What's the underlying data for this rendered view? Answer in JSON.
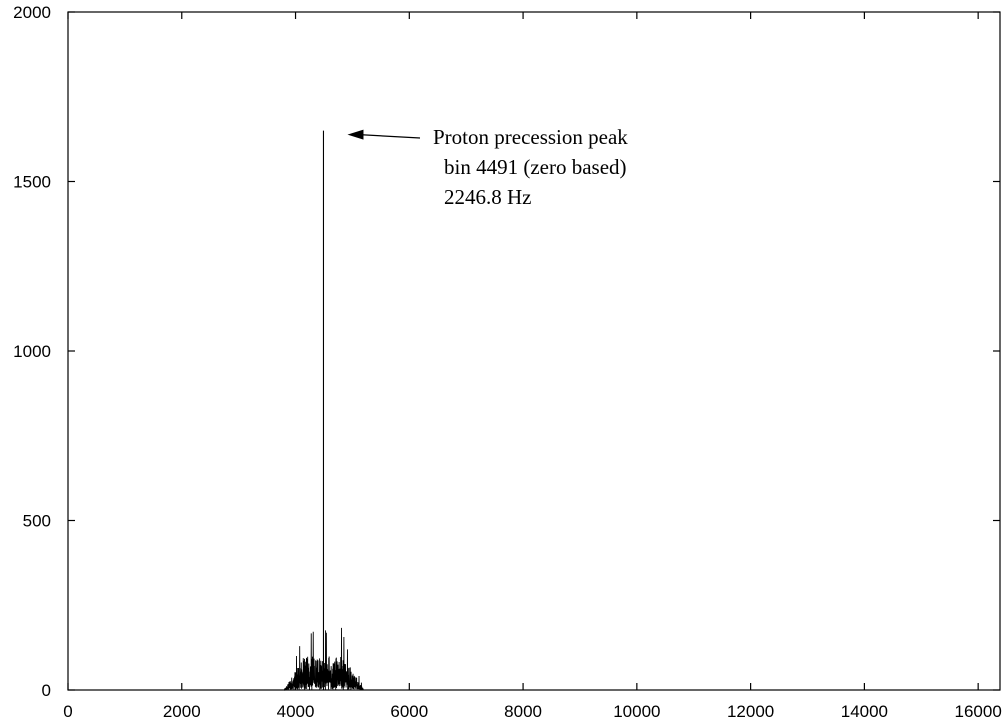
{
  "chart_data": {
    "type": "line",
    "title": "",
    "xlabel": "",
    "ylabel": "",
    "xlim": [
      0,
      16384
    ],
    "ylim": [
      0,
      2000
    ],
    "grid": false,
    "legend": "none",
    "x_ticks": [
      0,
      2000,
      4000,
      6000,
      8000,
      10000,
      12000,
      14000,
      16000
    ],
    "x_tick_labels": [
      "0",
      "2000",
      "4000",
      "6000",
      "8000",
      "10000",
      "12000",
      "14000",
      "16000"
    ],
    "y_ticks": [
      0,
      500,
      1000,
      1500,
      2000
    ],
    "y_tick_labels": [
      "0",
      "500",
      "1000",
      "1500",
      "2000"
    ],
    "series": [
      {
        "color": "#000000",
        "baseline": 0,
        "noise_band": {
          "x_start": 3800,
          "x_end": 5200,
          "plateau_start": 4150,
          "plateau_end": 4850,
          "typical_amplitude": 80,
          "max_amplitude": 185
        },
        "peak": {
          "x": 4491,
          "y": 1650
        }
      }
    ],
    "annotation": {
      "lines": [
        "Proton precession peak",
        "bin 4491 (zero based)",
        "2246.8 Hz"
      ],
      "points_to": {
        "x": 4491,
        "y": 1650
      }
    }
  }
}
